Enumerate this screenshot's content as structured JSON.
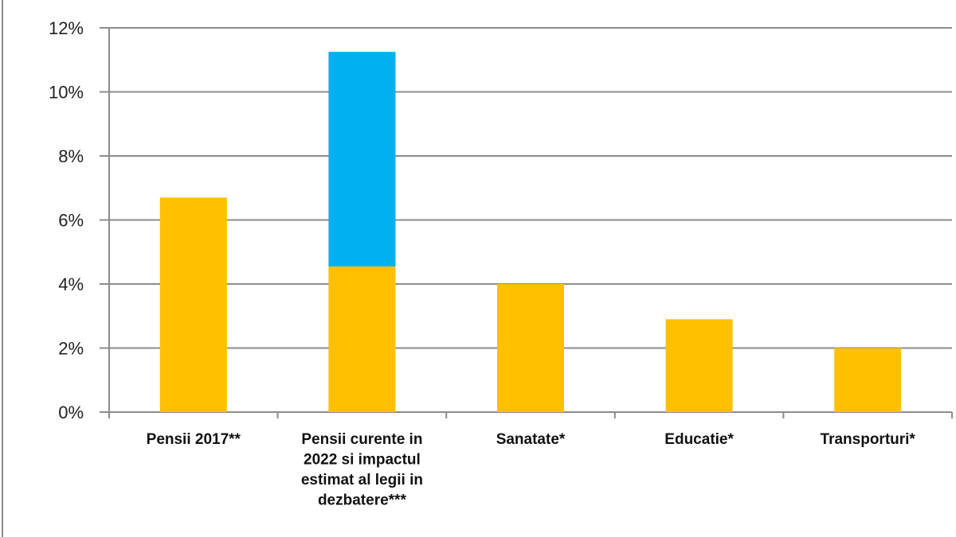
{
  "chart_data": {
    "type": "bar",
    "stacked": true,
    "categories": [
      [
        "Pensii 2017**"
      ],
      [
        "Pensii curente in",
        "2022 si impactul",
        "estimat al legii in",
        "dezbatere***"
      ],
      [
        "Sanatate*"
      ],
      [
        "Educatie*"
      ],
      [
        "Transporturi*"
      ]
    ],
    "series": [
      {
        "values": [
          6.7,
          4.55,
          4.0,
          2.9,
          2.0
        ],
        "color": "#FFC000"
      },
      {
        "values": [
          0,
          6.7,
          0,
          0,
          0
        ],
        "color": "#00B0F0"
      }
    ],
    "ylim": [
      0,
      12
    ],
    "yticks": [
      "0%",
      "2%",
      "4%",
      "6%",
      "8%",
      "10%",
      "12%"
    ],
    "grid": true,
    "y_unit": "%"
  }
}
